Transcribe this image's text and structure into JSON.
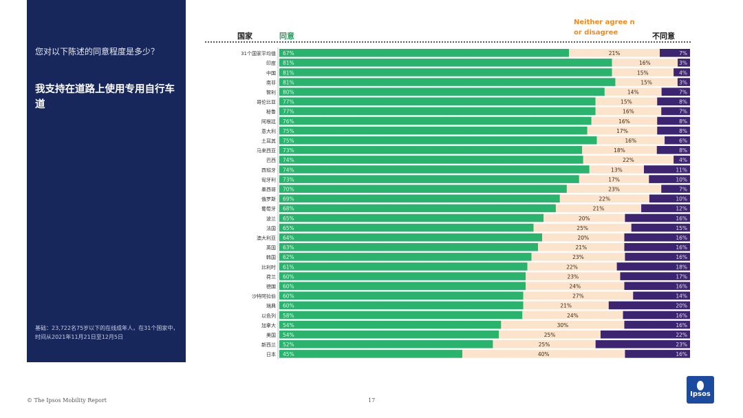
{
  "sidebar": {
    "question": "您对以下陈述的同意程度是多少？",
    "statement": "我支持在道路上使用专用自行车道",
    "base_note": "基础：23,722名75岁以下的在线成年人，在31个国家中，时间从2021年11月21日至12月5日"
  },
  "headers": {
    "country": "国家",
    "agree": "同意",
    "neither": "Neither agree n or disagree",
    "disagree": "不同意"
  },
  "footer": {
    "left": "© The Ipsos Mobility Report",
    "page": "17",
    "logo": "Ipsos"
  },
  "colors": {
    "sidebar": "#17275c",
    "agree": "#2ab36d",
    "neither": "#fce3cc",
    "disagree": "#3d2470",
    "neither_header": "#f08a1e",
    "agree_header": "#1fa05a"
  },
  "chart_data": {
    "type": "bar",
    "orientation": "horizontal",
    "stacked": true,
    "legend": "top",
    "series": [
      {
        "name": "同意",
        "values": [
          67,
          81,
          81,
          81,
          80,
          77,
          77,
          76,
          75,
          75,
          73,
          74,
          74,
          73,
          70,
          69,
          68,
          65,
          65,
          64,
          63,
          62,
          61,
          60,
          60,
          60,
          60,
          58,
          54,
          54,
          52,
          45
        ]
      },
      {
        "name": "Neither agree n or disagree",
        "values": [
          21,
          16,
          15,
          15,
          14,
          15,
          16,
          16,
          17,
          16,
          18,
          22,
          13,
          17,
          23,
          22,
          21,
          20,
          25,
          20,
          21,
          23,
          22,
          23,
          24,
          27,
          21,
          24,
          30,
          25,
          25,
          40
        ]
      },
      {
        "name": "不同意",
        "values": [
          7,
          3,
          4,
          3,
          7,
          8,
          7,
          8,
          8,
          6,
          8,
          4,
          11,
          10,
          7,
          10,
          12,
          16,
          15,
          16,
          16,
          16,
          18,
          17,
          16,
          14,
          20,
          16,
          16,
          22,
          23,
          16
        ]
      }
    ],
    "labels": {
      "agree": [
        "67%",
        "81%",
        "81%",
        "81%",
        "80%",
        "77%",
        "77%",
        "76%",
        "75%",
        "75%",
        "73%",
        "74%",
        "74%",
        "73%",
        "70%",
        "69%",
        "68%",
        "65%",
        "65%",
        "64%",
        "63%",
        "62%",
        "61%",
        "60%",
        "60%",
        "60%",
        "60%",
        "58%",
        "54%",
        "54%",
        "52%",
        "45%"
      ],
      "neither": [
        "21%",
        "16%",
        "15%",
        "15%",
        "14%",
        "15%",
        "16%",
        "16%",
        "17%",
        "16%",
        "18%",
        "22%",
        "13%",
        "17%",
        "23%",
        "22%",
        "21%",
        "20%",
        "25%",
        "20%",
        "21%",
        "23%",
        "22%",
        "23%",
        "24%",
        "27%",
        "21%",
        "24%",
        "30%",
        "25%",
        "25%",
        "40%"
      ],
      "disagree": [
        "7%",
        "3%",
        "4%",
        "3%",
        "7%",
        "8%",
        "7%",
        "8%",
        "8%",
        "6%",
        "8%",
        "4%",
        "11%",
        "10%",
        "7%",
        "10%",
        "12%",
        "16%",
        "15%",
        "16%",
        "16%",
        "16%",
        "18%",
        "17%",
        "16%",
        "14%",
        "20%",
        "16%",
        "16%",
        "22%",
        "23%",
        "16%"
      ]
    },
    "categories": [
      "31个国家平均值",
      "印度",
      "中国",
      "南非",
      "智利",
      "哥伦比亚",
      "秘鲁",
      "阿根廷",
      "意大利",
      "土耳其",
      "马来西亚",
      "巴西",
      "西班牙",
      "匈牙利",
      "墨西哥",
      "俄罗斯",
      "葡萄牙",
      "波兰",
      "法国",
      "澳大利亚",
      "英国",
      "韩国",
      "比利时",
      "荷兰",
      "德国",
      "沙特阿拉伯",
      "瑞典",
      "以色列",
      "加拿大",
      "美国",
      "新西兰",
      "日本"
    ],
    "xlim": [
      0,
      100
    ],
    "grid": false
  }
}
